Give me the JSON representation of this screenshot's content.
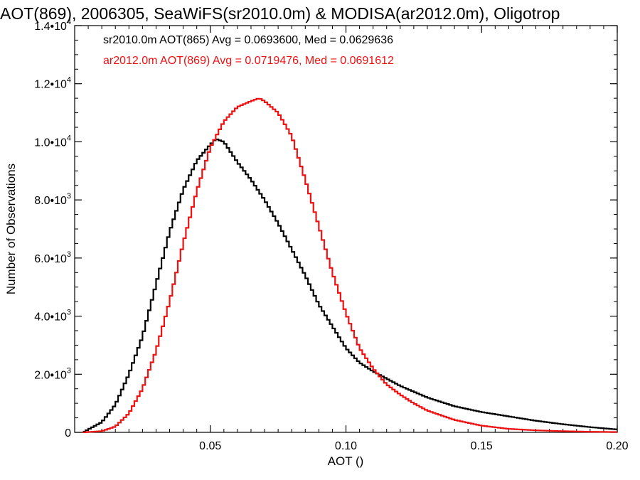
{
  "chart_data": {
    "type": "line",
    "title": "AOT(869), 2006305, SeaWiFS(sr2010.0m) & MODISA(ar2012.0m), Oligotrop",
    "xlabel": "AOT ()",
    "ylabel": "Number of Observations",
    "xlim": [
      0.0,
      0.2
    ],
    "ylim": [
      0,
      14000
    ],
    "x_ticks": [
      {
        "value": 0.05,
        "label": "0.05"
      },
      {
        "value": 0.1,
        "label": "0.10"
      },
      {
        "value": 0.15,
        "label": "0.15"
      },
      {
        "value": 0.2,
        "label": "0.20"
      }
    ],
    "y_ticks": [
      {
        "value": 0,
        "mantissa": "0",
        "exponent": ""
      },
      {
        "value": 2000,
        "mantissa": "2.0•10",
        "exponent": "3"
      },
      {
        "value": 4000,
        "mantissa": "4.0•10",
        "exponent": "3"
      },
      {
        "value": 6000,
        "mantissa": "6.0•10",
        "exponent": "3"
      },
      {
        "value": 8000,
        "mantissa": "8.0•10",
        "exponent": "3"
      },
      {
        "value": 10000,
        "mantissa": "1.0•10",
        "exponent": "4"
      },
      {
        "value": 12000,
        "mantissa": "1.2•10",
        "exponent": "4"
      },
      {
        "value": 14000,
        "mantissa": "1.4•10",
        "exponent": "4"
      }
    ],
    "legend": [
      {
        "text": "sr2010.0m AOT(865) Avg = 0.0693600, Med = 0.0629636",
        "color": "#000000"
      },
      {
        "text": "ar2012.0m AOT(869) Avg = 0.0719476, Med = 0.0691612",
        "color": "#ee1111"
      }
    ],
    "legend_position": "top-left",
    "grid": false,
    "series": [
      {
        "color": "#000000",
        "x": [
          0.003,
          0.01,
          0.015,
          0.02,
          0.025,
          0.03,
          0.035,
          0.04,
          0.045,
          0.05,
          0.052,
          0.055,
          0.06,
          0.065,
          0.07,
          0.075,
          0.08,
          0.085,
          0.09,
          0.095,
          0.1,
          0.105,
          0.11,
          0.115,
          0.12,
          0.125,
          0.13,
          0.14,
          0.15,
          0.16,
          0.17,
          0.18,
          0.19,
          0.2
        ],
        "y": [
          0,
          350,
          950,
          2000,
          3300,
          5100,
          6900,
          8350,
          9350,
          9900,
          10100,
          10000,
          9300,
          8700,
          8000,
          7200,
          6300,
          5400,
          4400,
          3650,
          2900,
          2400,
          2100,
          1850,
          1600,
          1400,
          1200,
          900,
          700,
          550,
          400,
          280,
          180,
          100
        ]
      },
      {
        "color": "#ee1111",
        "x": [
          0.003,
          0.01,
          0.015,
          0.02,
          0.025,
          0.03,
          0.035,
          0.04,
          0.045,
          0.05,
          0.055,
          0.06,
          0.065,
          0.068,
          0.07,
          0.075,
          0.08,
          0.085,
          0.09,
          0.095,
          0.1,
          0.105,
          0.11,
          0.115,
          0.12,
          0.125,
          0.13,
          0.14,
          0.15,
          0.16,
          0.17,
          0.18,
          0.19,
          0.2
        ],
        "y": [
          0,
          40,
          200,
          650,
          1500,
          2800,
          4500,
          6500,
          8300,
          9800,
          10700,
          11200,
          11400,
          11500,
          11400,
          11000,
          10200,
          8700,
          7100,
          5500,
          4100,
          2900,
          2200,
          1650,
          1300,
          1000,
          750,
          430,
          230,
          120,
          70,
          40,
          20,
          10
        ]
      }
    ]
  }
}
